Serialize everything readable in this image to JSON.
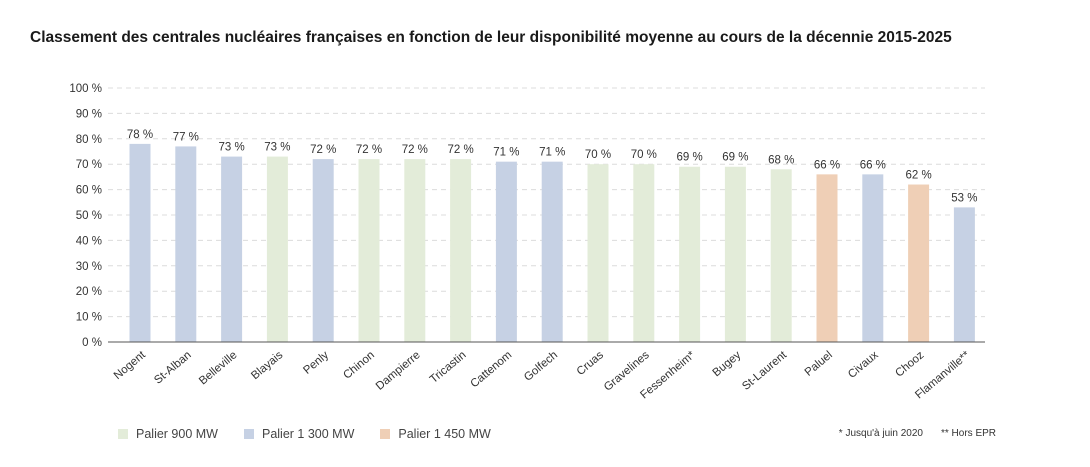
{
  "chart_data": {
    "type": "bar",
    "title": "Classement des centrales nucléaires françaises en fonction de leur disponibilité moyenne au cours de la décennie 2015-2025",
    "xlabel": "",
    "ylabel": "",
    "ylim": [
      0,
      100
    ],
    "y_ticks": [
      "0 %",
      "10 %",
      "20 %",
      "30 %",
      "40 %",
      "50 %",
      "60 %",
      "70 %",
      "80 %",
      "90 %",
      "100 %"
    ],
    "grid": true,
    "categories": [
      "Nogent",
      "St-Alban",
      "Belleville",
      "Blayais",
      "Penly",
      "Chinon",
      "Dampierre",
      "Tricastin",
      "Cattenom",
      "Golfech",
      "Cruas",
      "Gravelines",
      "Fessenheim*",
      "Bugey",
      "St-Laurent",
      "Paluel",
      "Civaux",
      "Chooz",
      "Flamanville**"
    ],
    "values": [
      78,
      77,
      73,
      73,
      72,
      72,
      72,
      72,
      71,
      71,
      70,
      70,
      69,
      69,
      68,
      66,
      66,
      62,
      53
    ],
    "value_labels": [
      "78 %",
      "77 %",
      "73 %",
      "73 %",
      "72 %",
      "72 %",
      "72 %",
      "72 %",
      "71 %",
      "71 %",
      "70 %",
      "70 %",
      "69 %",
      "69 %",
      "68 %",
      "66 %",
      "66 %",
      "62 %",
      "53 %"
    ],
    "groups": [
      "1300",
      "1300",
      "1300",
      "900",
      "1300",
      "900",
      "900",
      "900",
      "1300",
      "1300",
      "900",
      "900",
      "900",
      "900",
      "900",
      "1450",
      "1300",
      "1450",
      "1300"
    ],
    "legend": [
      {
        "key": "900",
        "label": "Palier 900 MW",
        "color": "#e3ecd9"
      },
      {
        "key": "1300",
        "label": "Palier 1 300 MW",
        "color": "#c6d1e4"
      },
      {
        "key": "1450",
        "label": "Palier 1 450 MW",
        "color": "#efcfb6"
      }
    ],
    "legend_position": "bottom-left",
    "notes": [
      "* Jusqu'à juin 2020",
      "** Hors EPR"
    ]
  }
}
